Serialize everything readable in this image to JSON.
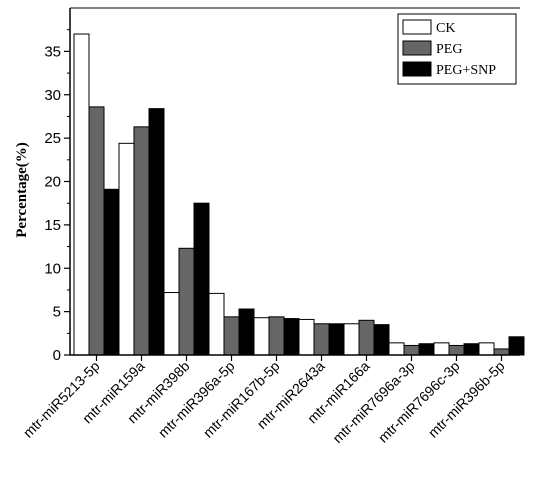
{
  "chart_data": {
    "type": "bar",
    "title": "",
    "xlabel": "",
    "ylabel": "Percentage(%)",
    "ylim": [
      0,
      40
    ],
    "yticks": [
      0,
      5,
      10,
      15,
      20,
      25,
      30,
      35
    ],
    "grid": false,
    "legend_position": "top-right",
    "categories": [
      "mtr-miR5213-5p",
      "mtr-miR159a",
      "mtr-miR398b",
      "mtr-miR396a-5p",
      "mtr-miR167b-5p",
      "mtr-miR2643a",
      "mtr-miR166a",
      "mtr-miR7696a-3p",
      "mtr-miR7696c-3p",
      "mtr-miR396b-5p"
    ],
    "series": [
      {
        "name": "CK",
        "color": "#ffffff",
        "values": [
          37.0,
          24.4,
          7.2,
          7.1,
          4.3,
          4.1,
          3.6,
          1.4,
          1.4,
          1.4
        ]
      },
      {
        "name": "PEG",
        "color": "#666666",
        "values": [
          28.6,
          26.3,
          12.3,
          4.4,
          4.4,
          3.6,
          4.0,
          1.1,
          1.1,
          0.7
        ]
      },
      {
        "name": "PEG+SNP",
        "color": "#000000",
        "values": [
          19.1,
          28.4,
          17.5,
          5.3,
          4.2,
          3.6,
          3.5,
          1.3,
          1.3,
          2.1
        ]
      }
    ]
  }
}
